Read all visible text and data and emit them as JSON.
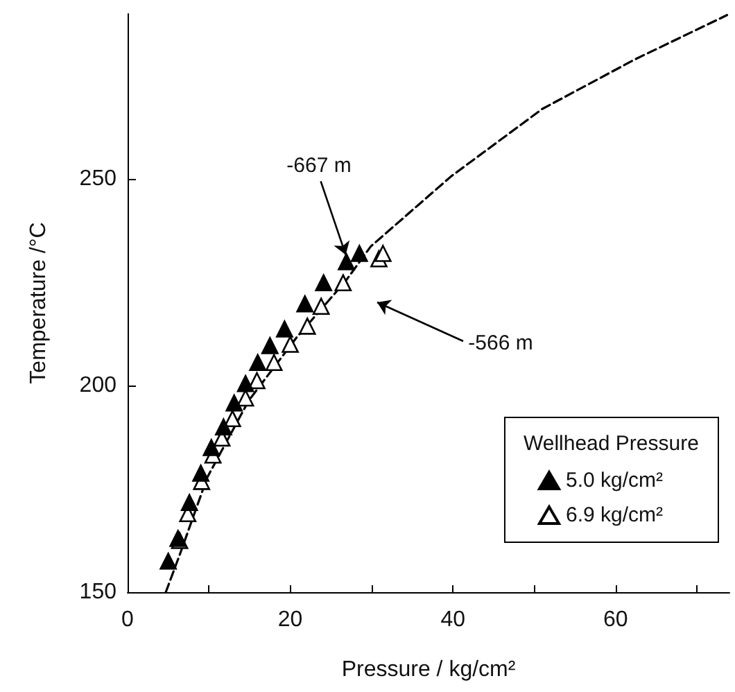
{
  "chart_data": {
    "type": "scatter",
    "xlabel": "Pressure / kg/cm²",
    "ylabel": "Temperature /°C",
    "legend_title": "Wellhead Pressure",
    "legend": "bottom right",
    "grid": false,
    "xlim": [
      0,
      74
    ],
    "xticks": [
      0,
      {
        "value": 10,
        "label": null
      },
      20,
      {
        "value": 30,
        "label": null
      },
      40,
      {
        "value": 50,
        "label": null
      },
      60,
      {
        "value": 70,
        "label": null
      }
    ],
    "ylim": [
      150,
      290
    ],
    "yticks": [
      150,
      200,
      250
    ],
    "series": [
      {
        "name": "5.0 kg/cm²",
        "color": "#000000",
        "marker": "triangle",
        "x": [
          5.0,
          6.2,
          7.6,
          9.0,
          10.3,
          11.8,
          13.1,
          14.5,
          16.0,
          17.5,
          19.3,
          21.8,
          24.1,
          26.9,
          28.5
        ],
        "values": [
          157.5,
          163,
          171.7,
          178.8,
          185,
          190,
          195.8,
          200.5,
          205.6,
          209.7,
          213.7,
          219.8,
          224.9,
          230,
          232
        ]
      },
      {
        "name": "6.9 kg/cm²",
        "color": "#ffffff",
        "marker": "triangle",
        "x": [
          6.4,
          7.4,
          9.1,
          10.5,
          11.6,
          12.9,
          14.5,
          15.9,
          18.0,
          20.0,
          22.1,
          23.8,
          26.5,
          30.9,
          31.4
        ],
        "values": [
          162.5,
          169,
          176.8,
          183.2,
          187.3,
          192,
          197,
          201.2,
          205.6,
          210,
          214.4,
          219.2,
          224.9,
          230.7,
          232
        ]
      },
      {
        "type": "line",
        "color": "#000000",
        "marker": "none",
        "line_style": "dashed",
        "x": [
          4.7,
          6.4,
          9.8,
          14.9,
          20.8,
          26.8,
          29.9,
          39.8,
          51,
          62.4,
          73.7
        ],
        "values": [
          150,
          159,
          177.8,
          196.4,
          211.7,
          225.3,
          233.7,
          250.7,
          267,
          279,
          289.7
        ]
      }
    ],
    "annotations": [
      {
        "text": "-667 m",
        "x": 27.5,
        "y": 230
      },
      "-566 m"
    ]
  }
}
